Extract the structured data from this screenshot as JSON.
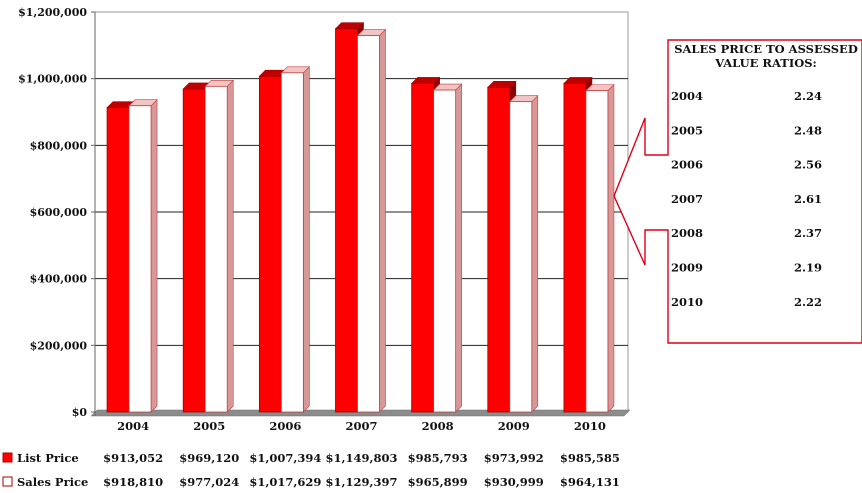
{
  "chart_data": {
    "type": "bar",
    "categories": [
      "2004",
      "2005",
      "2006",
      "2007",
      "2008",
      "2009",
      "2010"
    ],
    "series": [
      {
        "name": "List Price",
        "values": [
          913052,
          969120,
          1007394,
          1149803,
          985793,
          973992,
          985585
        ],
        "labels": [
          "$913,052",
          "$969,120",
          "$1,007,394",
          "$1,149,803",
          "$985,793",
          "$973,992",
          "$985,585"
        ],
        "color": "#ff0000"
      },
      {
        "name": "Sales Price",
        "values": [
          918810,
          977024,
          1017629,
          1129397,
          965899,
          930999,
          964131
        ],
        "labels": [
          "$918,810",
          "$977,024",
          "$1,017,629",
          "$1,129,397",
          "$965,899",
          "$930,999",
          "$964,131"
        ],
        "color": "#ffffff"
      }
    ],
    "yticks": [
      "$0",
      "$200,000",
      "$400,000",
      "$600,000",
      "$800,000",
      "$1,000,000",
      "$1,200,000"
    ],
    "ylim": [
      0,
      1200000
    ],
    "grid": true,
    "legend": "bottom-left data table"
  },
  "ratios_panel": {
    "title_line1": "SALES PRICE TO ASSESSED",
    "title_line2": "VALUE RATIOS:",
    "rows": [
      {
        "year": "2004",
        "ratio": "2.24"
      },
      {
        "year": "2005",
        "ratio": "2.48"
      },
      {
        "year": "2006",
        "ratio": "2.56"
      },
      {
        "year": "2007",
        "ratio": "2.61"
      },
      {
        "year": "2008",
        "ratio": "2.37"
      },
      {
        "year": "2009",
        "ratio": "2.19"
      },
      {
        "year": "2010",
        "ratio": "2.22"
      }
    ],
    "border_color": "#e0001a"
  }
}
